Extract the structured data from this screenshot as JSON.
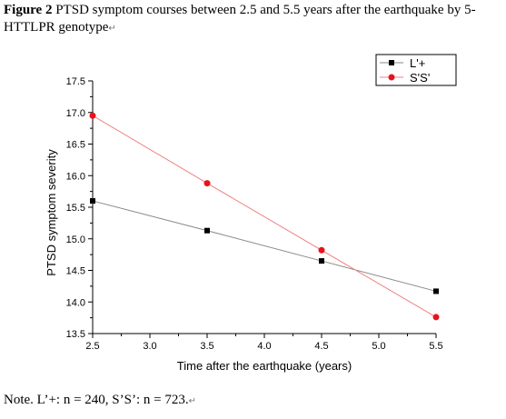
{
  "caption": {
    "label": "Figure 2",
    "text": "PTSD symptom courses between 2.5 and 5.5 years after the earthquake by 5-HTTLPR genotype",
    "mark": "↵"
  },
  "note": {
    "text": "Note. L’+: n = 240, S’S’: n = 723.",
    "mark": "↵"
  },
  "chart_data": {
    "type": "line",
    "xlabel": "Time after the earthquake (years)",
    "ylabel": "PTSD symptom severity",
    "xlim": [
      2.5,
      5.5
    ],
    "ylim": [
      13.5,
      17.5
    ],
    "xticks": [
      "2.5",
      "3.0",
      "3.5",
      "4.0",
      "4.5",
      "5.0",
      "5.5"
    ],
    "yticks": [
      "13.5",
      "14.0",
      "14.5",
      "15.0",
      "15.5",
      "16.0",
      "16.5",
      "17.0",
      "17.5"
    ],
    "x": [
      2.5,
      3.5,
      4.5,
      5.5
    ],
    "series": [
      {
        "name": "L'+",
        "marker": "square",
        "color": "#000000",
        "line_color": "#888888",
        "values": [
          15.6,
          15.13,
          14.65,
          14.17
        ]
      },
      {
        "name": "S'S'",
        "marker": "circle",
        "color": "#e8141b",
        "line_color": "#f08080",
        "values": [
          16.95,
          15.88,
          14.82,
          13.76
        ]
      }
    ],
    "legend": "top-right",
    "grid": false
  }
}
